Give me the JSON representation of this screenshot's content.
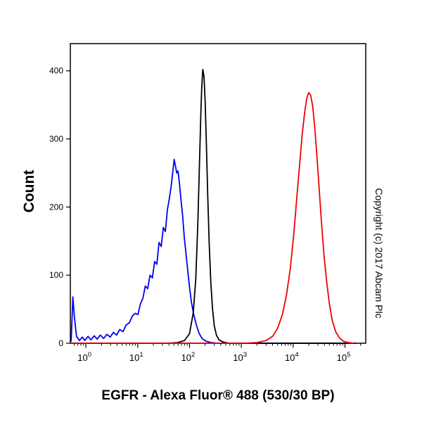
{
  "figure": {
    "title": "EGFR - Alexa Fluor® 488 (530/30 BP)",
    "ylabel": "Count",
    "copyright": "Copyright (c) 2017 Abcam Plc"
  },
  "chart_data": {
    "type": "line",
    "title": "EGFR - Alexa Fluor® 488 (530/30 BP)",
    "xlabel": "",
    "ylabel": "Count",
    "x_scale": "log10",
    "xlog_range": [
      -0.3,
      5.4
    ],
    "ylim": [
      0,
      440
    ],
    "y_ticks": [
      0,
      100,
      200,
      300,
      400
    ],
    "x_tick_base": "10",
    "x_tick_exponents": [
      0,
      1,
      2,
      3,
      4,
      5
    ],
    "grid": false,
    "legend": "none",
    "series": [
      {
        "name": "blue",
        "color": "#0000ee",
        "peak": {
          "x": 50,
          "y": 270
        },
        "points": [
          [
            0.52,
            3
          ],
          [
            0.56,
            68
          ],
          [
            0.6,
            38
          ],
          [
            0.66,
            10
          ],
          [
            0.75,
            4
          ],
          [
            0.85,
            9
          ],
          [
            0.95,
            4
          ],
          [
            1.1,
            10
          ],
          [
            1.25,
            5
          ],
          [
            1.45,
            11
          ],
          [
            1.65,
            6
          ],
          [
            1.9,
            12
          ],
          [
            2.2,
            7
          ],
          [
            2.55,
            13
          ],
          [
            2.95,
            9
          ],
          [
            3.4,
            16
          ],
          [
            3.9,
            12
          ],
          [
            4.5,
            20
          ],
          [
            5.2,
            17
          ],
          [
            6.0,
            27
          ],
          [
            6.9,
            30
          ],
          [
            7.9,
            40
          ],
          [
            9.0,
            44
          ],
          [
            10.1,
            42
          ],
          [
            11.3,
            58
          ],
          [
            12.6,
            66
          ],
          [
            14.0,
            84
          ],
          [
            15.6,
            80
          ],
          [
            17.3,
            100
          ],
          [
            19.2,
            96
          ],
          [
            21.2,
            120
          ],
          [
            23.4,
            116
          ],
          [
            25.8,
            148
          ],
          [
            28.4,
            142
          ],
          [
            31.2,
            170
          ],
          [
            34.2,
            164
          ],
          [
            37.4,
            196
          ],
          [
            40.7,
            212
          ],
          [
            44.1,
            230
          ],
          [
            47.6,
            252
          ],
          [
            50.5,
            270
          ],
          [
            53.5,
            260
          ],
          [
            56.6,
            250
          ],
          [
            60,
            253
          ],
          [
            64,
            234
          ],
          [
            68.5,
            210
          ],
          [
            73.5,
            188
          ],
          [
            79,
            157
          ],
          [
            85,
            133
          ],
          [
            92,
            108
          ],
          [
            100,
            82
          ],
          [
            109,
            60
          ],
          [
            120,
            43
          ],
          [
            134,
            28
          ],
          [
            152,
            15
          ],
          [
            174,
            7
          ],
          [
            208,
            3
          ],
          [
            260,
            1
          ],
          [
            340,
            0
          ],
          [
            160000,
            0
          ]
        ]
      },
      {
        "name": "black",
        "color": "#000000",
        "peak": {
          "x": 180,
          "y": 402
        },
        "points": [
          [
            0.52,
            0
          ],
          [
            40,
            0
          ],
          [
            60,
            1
          ],
          [
            80,
            4
          ],
          [
            100,
            14
          ],
          [
            118,
            45
          ],
          [
            132,
            95
          ],
          [
            145,
            180
          ],
          [
            155,
            260
          ],
          [
            165,
            335
          ],
          [
            172,
            375
          ],
          [
            180,
            402
          ],
          [
            190,
            392
          ],
          [
            200,
            355
          ],
          [
            212,
            290
          ],
          [
            225,
            215
          ],
          [
            240,
            145
          ],
          [
            258,
            88
          ],
          [
            278,
            50
          ],
          [
            300,
            26
          ],
          [
            330,
            12
          ],
          [
            370,
            5
          ],
          [
            440,
            2
          ],
          [
            560,
            0
          ],
          [
            160000,
            0
          ]
        ]
      },
      {
        "name": "red",
        "color": "#ee0000",
        "peak": {
          "x": 20000,
          "y": 368
        },
        "points": [
          [
            0.52,
            0
          ],
          [
            1200,
            0
          ],
          [
            2000,
            1
          ],
          [
            3000,
            4
          ],
          [
            4000,
            10
          ],
          [
            5000,
            22
          ],
          [
            6200,
            42
          ],
          [
            7400,
            70
          ],
          [
            8800,
            110
          ],
          [
            10200,
            158
          ],
          [
            11800,
            215
          ],
          [
            13400,
            265
          ],
          [
            15000,
            308
          ],
          [
            16700,
            340
          ],
          [
            18300,
            360
          ],
          [
            20000,
            368
          ],
          [
            21800,
            364
          ],
          [
            23800,
            348
          ],
          [
            26000,
            318
          ],
          [
            28500,
            278
          ],
          [
            31500,
            230
          ],
          [
            35000,
            180
          ],
          [
            39000,
            132
          ],
          [
            44000,
            92
          ],
          [
            50000,
            58
          ],
          [
            57000,
            33
          ],
          [
            66000,
            17
          ],
          [
            78000,
            8
          ],
          [
            93000,
            3
          ],
          [
            115000,
            1
          ],
          [
            150000,
            0
          ]
        ]
      }
    ]
  }
}
